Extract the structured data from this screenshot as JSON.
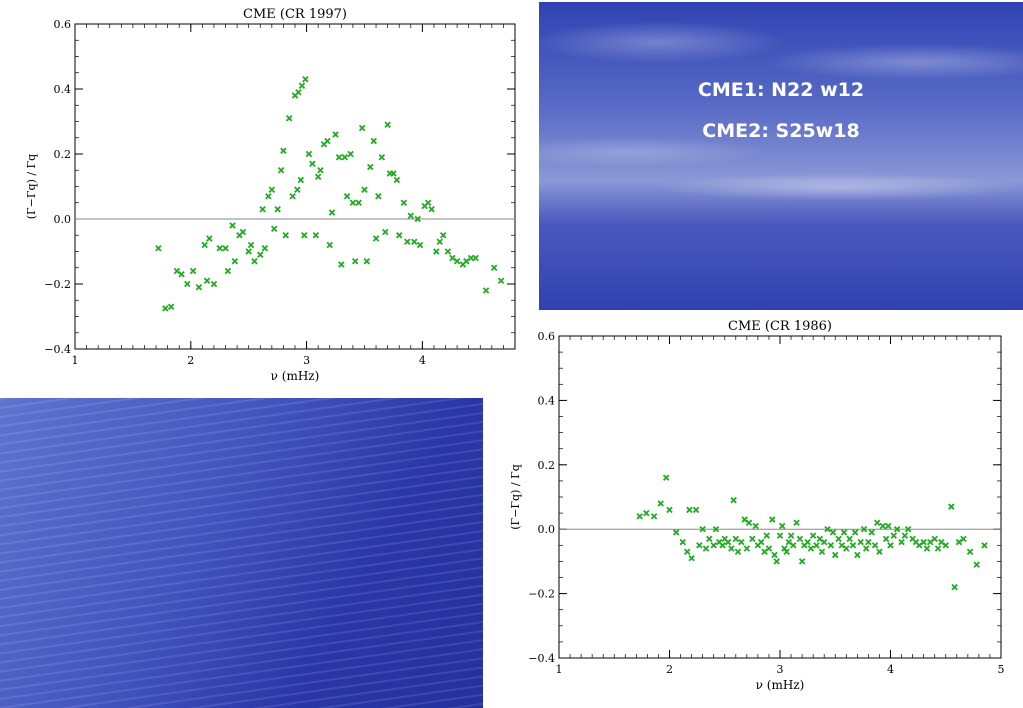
{
  "sky_panel": {
    "line1": "CME1: N22 w12",
    "line2": "CME2: S25w18"
  },
  "chart_data": [
    {
      "type": "scatter",
      "title": "CME (CR 1997)",
      "xlabel": "ν (mHz)",
      "ylabel": "(Γ−Γq) / Γq",
      "xlim": [
        1,
        4.8
      ],
      "ylim": [
        -0.4,
        0.6
      ],
      "x_ticks": [
        1,
        2,
        3,
        4
      ],
      "y_ticks": [
        -0.4,
        -0.2,
        0.0,
        0.2,
        0.4,
        0.6
      ],
      "x_tick_labels": [
        "1",
        "2",
        "3",
        "4"
      ],
      "y_tick_labels": [
        "−0.4",
        "−0.2",
        "0.0",
        "0.2",
        "0.4",
        "0.6"
      ],
      "reference_line_y": 0,
      "marker": "x",
      "color": "#22aa22",
      "points": [
        [
          1.72,
          -0.09
        ],
        [
          1.78,
          -0.275
        ],
        [
          1.83,
          -0.27
        ],
        [
          1.88,
          -0.16
        ],
        [
          1.92,
          -0.17
        ],
        [
          1.97,
          -0.2
        ],
        [
          2.02,
          -0.16
        ],
        [
          2.07,
          -0.21
        ],
        [
          2.12,
          -0.08
        ],
        [
          2.16,
          -0.06
        ],
        [
          2.14,
          -0.19
        ],
        [
          2.2,
          -0.2
        ],
        [
          2.25,
          -0.09
        ],
        [
          2.3,
          -0.09
        ],
        [
          2.32,
          -0.16
        ],
        [
          2.36,
          -0.02
        ],
        [
          2.38,
          -0.13
        ],
        [
          2.42,
          -0.05
        ],
        [
          2.45,
          -0.04
        ],
        [
          2.5,
          -0.1
        ],
        [
          2.52,
          -0.08
        ],
        [
          2.55,
          -0.13
        ],
        [
          2.6,
          -0.11
        ],
        [
          2.62,
          0.03
        ],
        [
          2.64,
          -0.09
        ],
        [
          2.67,
          0.07
        ],
        [
          2.7,
          0.09
        ],
        [
          2.72,
          -0.03
        ],
        [
          2.75,
          0.03
        ],
        [
          2.78,
          0.15
        ],
        [
          2.8,
          0.21
        ],
        [
          2.82,
          -0.05
        ],
        [
          2.85,
          0.31
        ],
        [
          2.9,
          0.38
        ],
        [
          2.93,
          0.39
        ],
        [
          2.96,
          0.41
        ],
        [
          2.99,
          0.43
        ],
        [
          2.88,
          0.07
        ],
        [
          2.92,
          0.09
        ],
        [
          2.95,
          0.12
        ],
        [
          2.98,
          -0.05
        ],
        [
          3.02,
          0.2
        ],
        [
          3.05,
          0.17
        ],
        [
          3.08,
          -0.05
        ],
        [
          3.1,
          0.13
        ],
        [
          3.12,
          0.15
        ],
        [
          3.15,
          0.23
        ],
        [
          3.18,
          0.24
        ],
        [
          3.2,
          -0.08
        ],
        [
          3.22,
          0.02
        ],
        [
          3.25,
          0.26
        ],
        [
          3.28,
          0.19
        ],
        [
          3.3,
          -0.14
        ],
        [
          3.33,
          0.19
        ],
        [
          3.35,
          0.07
        ],
        [
          3.38,
          0.2
        ],
        [
          3.4,
          0.05
        ],
        [
          3.42,
          -0.13
        ],
        [
          3.45,
          0.05
        ],
        [
          3.48,
          0.28
        ],
        [
          3.5,
          0.09
        ],
        [
          3.52,
          -0.13
        ],
        [
          3.55,
          0.16
        ],
        [
          3.58,
          0.24
        ],
        [
          3.6,
          -0.06
        ],
        [
          3.62,
          0.07
        ],
        [
          3.65,
          0.19
        ],
        [
          3.68,
          -0.04
        ],
        [
          3.7,
          0.29
        ],
        [
          3.72,
          0.14
        ],
        [
          3.75,
          0.14
        ],
        [
          3.78,
          0.12
        ],
        [
          3.8,
          -0.05
        ],
        [
          3.84,
          0.05
        ],
        [
          3.87,
          -0.07
        ],
        [
          3.9,
          0.01
        ],
        [
          3.93,
          -0.07
        ],
        [
          3.96,
          0.0
        ],
        [
          3.98,
          -0.08
        ],
        [
          4.02,
          0.04
        ],
        [
          4.05,
          0.05
        ],
        [
          4.08,
          0.03
        ],
        [
          4.12,
          -0.1
        ],
        [
          4.15,
          -0.07
        ],
        [
          4.18,
          -0.05
        ],
        [
          4.22,
          -0.1
        ],
        [
          4.26,
          -0.12
        ],
        [
          4.3,
          -0.13
        ],
        [
          4.35,
          -0.14
        ],
        [
          4.38,
          -0.13
        ],
        [
          4.42,
          -0.12
        ],
        [
          4.46,
          -0.12
        ],
        [
          4.55,
          -0.22
        ],
        [
          4.62,
          -0.15
        ],
        [
          4.68,
          -0.19
        ]
      ]
    },
    {
      "type": "scatter",
      "title": "CME (CR 1986)",
      "xlabel": "ν (mHz)",
      "ylabel": "(Γ−Γq) / Γq",
      "xlim": [
        1,
        5
      ],
      "ylim": [
        -0.4,
        0.6
      ],
      "x_ticks": [
        1,
        2,
        3,
        4,
        5
      ],
      "y_ticks": [
        -0.4,
        -0.2,
        0.0,
        0.2,
        0.4,
        0.6
      ],
      "x_tick_labels": [
        "1",
        "2",
        "3",
        "4",
        "5"
      ],
      "y_tick_labels": [
        "−0.4",
        "−0.2",
        "0.0",
        "0.2",
        "0.4",
        "0.6"
      ],
      "reference_line_y": 0,
      "marker": "x",
      "color": "#22aa22",
      "points": [
        [
          1.73,
          0.04
        ],
        [
          1.79,
          0.05
        ],
        [
          1.86,
          0.04
        ],
        [
          1.92,
          0.08
        ],
        [
          1.97,
          0.16
        ],
        [
          2.0,
          0.06
        ],
        [
          2.06,
          -0.01
        ],
        [
          2.12,
          -0.04
        ],
        [
          2.16,
          -0.07
        ],
        [
          2.18,
          0.06
        ],
        [
          2.2,
          -0.09
        ],
        [
          2.24,
          0.06
        ],
        [
          2.27,
          -0.05
        ],
        [
          2.3,
          0.0
        ],
        [
          2.33,
          -0.06
        ],
        [
          2.36,
          -0.03
        ],
        [
          2.4,
          -0.05
        ],
        [
          2.42,
          0.0
        ],
        [
          2.45,
          -0.04
        ],
        [
          2.48,
          -0.05
        ],
        [
          2.5,
          -0.03
        ],
        [
          2.53,
          -0.04
        ],
        [
          2.56,
          -0.06
        ],
        [
          2.58,
          0.09
        ],
        [
          2.6,
          -0.03
        ],
        [
          2.62,
          -0.07
        ],
        [
          2.65,
          -0.04
        ],
        [
          2.68,
          0.03
        ],
        [
          2.7,
          -0.06
        ],
        [
          2.72,
          0.02
        ],
        [
          2.75,
          -0.03
        ],
        [
          2.78,
          0.01
        ],
        [
          2.8,
          -0.05
        ],
        [
          2.83,
          -0.04
        ],
        [
          2.86,
          -0.07
        ],
        [
          2.88,
          -0.02
        ],
        [
          2.9,
          -0.06
        ],
        [
          2.93,
          0.03
        ],
        [
          2.95,
          -0.08
        ],
        [
          2.97,
          -0.1
        ],
        [
          3.0,
          -0.02
        ],
        [
          3.02,
          0.01
        ],
        [
          3.04,
          -0.06
        ],
        [
          3.06,
          -0.07
        ],
        [
          3.08,
          -0.04
        ],
        [
          3.1,
          -0.02
        ],
        [
          3.12,
          -0.05
        ],
        [
          3.15,
          0.02
        ],
        [
          3.18,
          -0.03
        ],
        [
          3.2,
          -0.1
        ],
        [
          3.22,
          -0.05
        ],
        [
          3.25,
          -0.04
        ],
        [
          3.28,
          -0.06
        ],
        [
          3.3,
          -0.02
        ],
        [
          3.33,
          -0.05
        ],
        [
          3.36,
          -0.03
        ],
        [
          3.38,
          -0.07
        ],
        [
          3.4,
          -0.04
        ],
        [
          3.43,
          0.0
        ],
        [
          3.46,
          -0.05
        ],
        [
          3.48,
          -0.01
        ],
        [
          3.5,
          -0.08
        ],
        [
          3.53,
          -0.03
        ],
        [
          3.56,
          -0.05
        ],
        [
          3.58,
          -0.01
        ],
        [
          3.6,
          -0.06
        ],
        [
          3.63,
          -0.03
        ],
        [
          3.66,
          -0.05
        ],
        [
          3.68,
          -0.01
        ],
        [
          3.7,
          -0.08
        ],
        [
          3.73,
          -0.04
        ],
        [
          3.76,
          0.0
        ],
        [
          3.78,
          -0.06
        ],
        [
          3.8,
          -0.04
        ],
        [
          3.83,
          -0.01
        ],
        [
          3.86,
          -0.05
        ],
        [
          3.88,
          0.02
        ],
        [
          3.9,
          -0.07
        ],
        [
          3.93,
          0.01
        ],
        [
          3.96,
          -0.03
        ],
        [
          3.98,
          0.01
        ],
        [
          4.0,
          -0.05
        ],
        [
          4.03,
          -0.02
        ],
        [
          4.06,
          0.0
        ],
        [
          4.1,
          -0.04
        ],
        [
          4.13,
          -0.02
        ],
        [
          4.16,
          0.0
        ],
        [
          4.2,
          -0.03
        ],
        [
          4.23,
          -0.04
        ],
        [
          4.26,
          -0.05
        ],
        [
          4.3,
          -0.04
        ],
        [
          4.33,
          -0.06
        ],
        [
          4.36,
          -0.04
        ],
        [
          4.4,
          -0.03
        ],
        [
          4.43,
          -0.06
        ],
        [
          4.46,
          -0.04
        ],
        [
          4.5,
          -0.05
        ],
        [
          4.55,
          0.07
        ],
        [
          4.58,
          -0.18
        ],
        [
          4.62,
          -0.04
        ],
        [
          4.66,
          -0.03
        ],
        [
          4.72,
          -0.07
        ],
        [
          4.78,
          -0.11
        ],
        [
          4.85,
          -0.05
        ]
      ]
    }
  ]
}
